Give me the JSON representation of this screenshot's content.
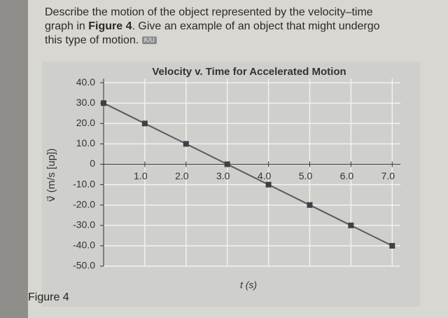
{
  "question": {
    "text_before": "Describe the motion of the object represented by the velocity–time graph in ",
    "figure_ref": "Figure 4",
    "text_after": ". Give an example of an object that might undergo this type of motion.",
    "badge": "K/U"
  },
  "caption": "Figure 4",
  "chart_data": {
    "type": "line",
    "title": "Velocity v. Time for Accelerated Motion",
    "x_label": "t (s)",
    "y_label": "v⃗ (m/s [up])",
    "x": [
      0,
      1,
      2,
      3,
      4,
      5,
      6,
      7
    ],
    "series": [
      {
        "name": "velocity",
        "color": "#555b60",
        "values": [
          30,
          20,
          10,
          0,
          -10,
          -20,
          -30,
          -40
        ]
      }
    ],
    "xlim": [
      0,
      7.2
    ],
    "ylim": [
      -50,
      42
    ],
    "xticks": [
      {
        "value": 1,
        "label": "1.0"
      },
      {
        "value": 2,
        "label": "2.0"
      },
      {
        "value": 3,
        "label": "3.0"
      },
      {
        "value": 4,
        "label": "4.0"
      },
      {
        "value": 5,
        "label": "5.0"
      },
      {
        "value": 6,
        "label": "6.0"
      },
      {
        "value": 7,
        "label": "7.0"
      }
    ],
    "yticks": [
      {
        "value": 40,
        "label": "40.0"
      },
      {
        "value": 30,
        "label": "30.0"
      },
      {
        "value": 20,
        "label": "20.0"
      },
      {
        "value": 10,
        "label": "10.0"
      },
      0,
      {
        "value": -10,
        "label": "-10.0"
      },
      {
        "value": -20,
        "label": "-20.0"
      },
      {
        "value": -30,
        "label": "-30.0"
      },
      {
        "value": -40,
        "label": "-40.0"
      },
      {
        "value": -50,
        "label": "-50.0"
      }
    ],
    "grid": true
  }
}
